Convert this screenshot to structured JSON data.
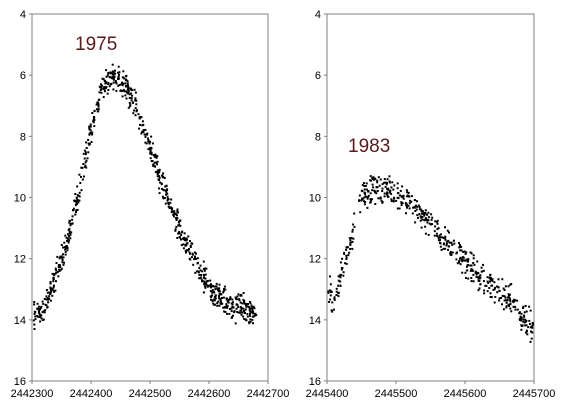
{
  "chart_data": [
    {
      "type": "scatter",
      "title": "1975",
      "xlabel": "",
      "ylabel": "",
      "xlim": [
        2442300,
        2442700
      ],
      "ylim": [
        16,
        4
      ],
      "y_inverted": true,
      "x_ticks": [
        "2442300",
        "2442400",
        "2442500",
        "2442600",
        "2442700"
      ],
      "y_ticks": [
        "4",
        "6",
        "8",
        "10",
        "12",
        "14",
        "16"
      ],
      "marker_color": "#000000",
      "title_color": "#5a1a1a",
      "grid": false,
      "curve": [
        [
          2442300,
          14.0
        ],
        [
          2442320,
          13.6
        ],
        [
          2442340,
          12.6
        ],
        [
          2442360,
          11.4
        ],
        [
          2442380,
          9.8
        ],
        [
          2442400,
          7.8
        ],
        [
          2442420,
          6.3
        ],
        [
          2442440,
          6.0
        ],
        [
          2442460,
          6.4
        ],
        [
          2442480,
          7.2
        ],
        [
          2442500,
          8.4
        ],
        [
          2442520,
          9.5
        ],
        [
          2442540,
          10.6
        ],
        [
          2442560,
          11.5
        ],
        [
          2442580,
          12.3
        ],
        [
          2442600,
          12.9
        ],
        [
          2442620,
          13.3
        ],
        [
          2442640,
          13.5
        ],
        [
          2442660,
          13.6
        ],
        [
          2442680,
          13.8
        ]
      ],
      "scatter": 0.3
    },
    {
      "type": "scatter",
      "title": "1983",
      "xlabel": "",
      "ylabel": "",
      "xlim": [
        2445400,
        2445700
      ],
      "ylim": [
        16,
        4
      ],
      "y_inverted": true,
      "x_ticks": [
        "2445400",
        "2445500",
        "2445600",
        "2445700"
      ],
      "y_ticks": [
        "4",
        "6",
        "8",
        "10",
        "12",
        "14",
        "16"
      ],
      "marker_color": "#000000",
      "title_color": "#5a1a1a",
      "grid": false,
      "curve": [
        [
          2445402,
          13.0
        ],
        [
          2445410,
          13.6
        ],
        [
          2445425,
          12.1
        ],
        [
          2445440,
          11.0
        ],
        [
          2445450,
          9.9
        ],
        [
          2445470,
          9.7
        ],
        [
          2445490,
          9.8
        ],
        [
          2445510,
          10.0
        ],
        [
          2445530,
          10.4
        ],
        [
          2445550,
          10.9
        ],
        [
          2445570,
          11.4
        ],
        [
          2445590,
          11.9
        ],
        [
          2445610,
          12.3
        ],
        [
          2445630,
          12.7
        ],
        [
          2445650,
          13.1
        ],
        [
          2445670,
          13.4
        ],
        [
          2445685,
          14.0
        ],
        [
          2445700,
          14.3
        ]
      ],
      "scatter": 0.35
    }
  ]
}
